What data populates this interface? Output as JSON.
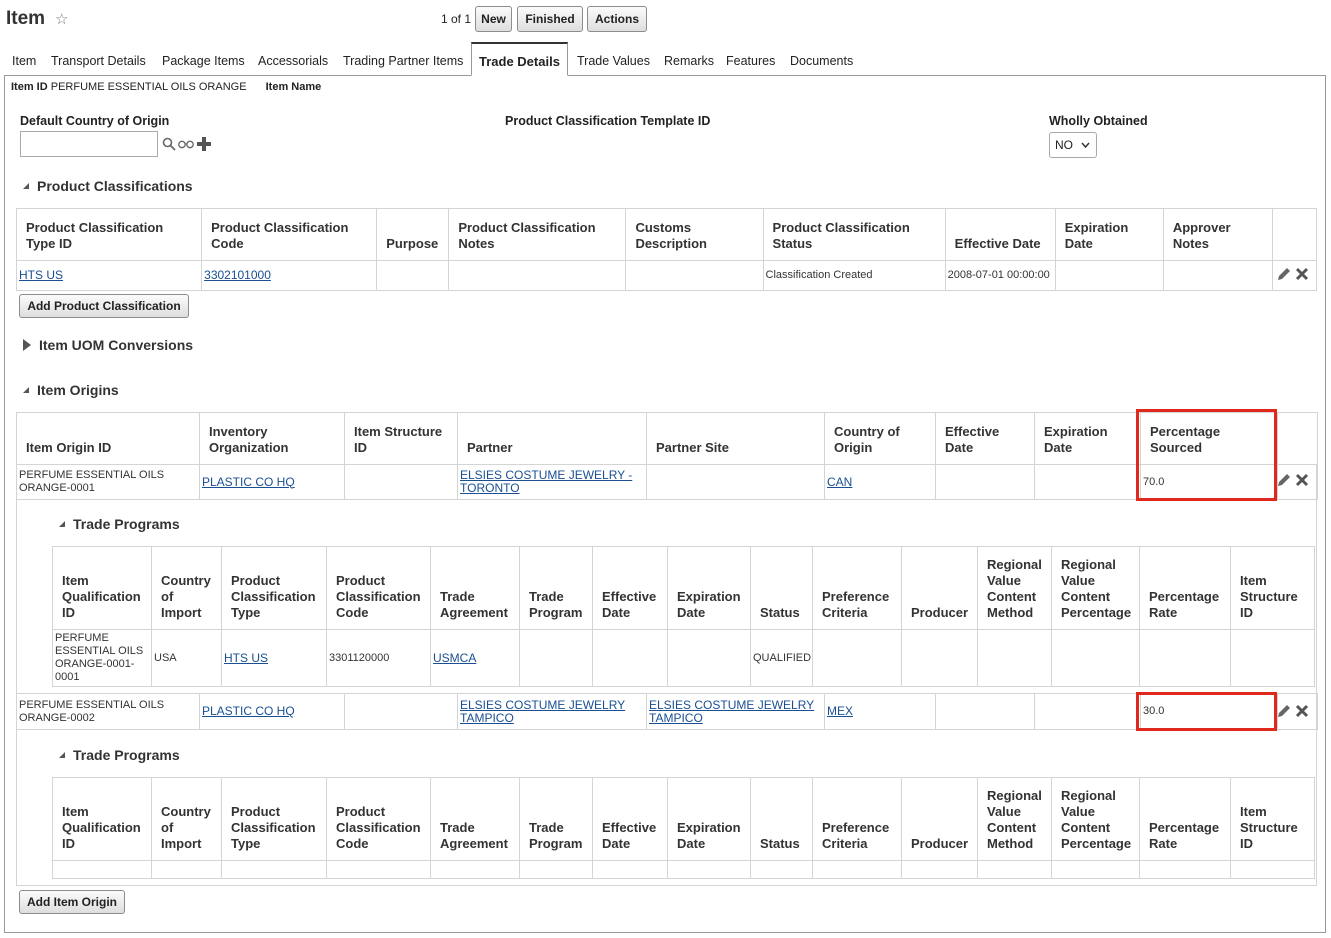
{
  "header": {
    "title": "Item",
    "pager": "1 of 1",
    "buttons": {
      "new": "New",
      "finished": "Finished",
      "actions": "Actions"
    }
  },
  "tabs": [
    "Item",
    "Transport Details",
    "Package Items",
    "Accessorials",
    "Trading Partner Items",
    "Trade Details",
    "Trade Values",
    "Remarks",
    "Features",
    "Documents"
  ],
  "active_tab": "Trade Details",
  "item_info": {
    "id_label": "Item ID",
    "id_value": "PERFUME ESSENTIAL OILS ORANGE",
    "name_label": "Item Name",
    "name_value": ""
  },
  "form": {
    "default_country_label": "Default Country of Origin",
    "default_country_value": "",
    "template_label": "Product Classification Template ID",
    "wholly_label": "Wholly Obtained",
    "wholly_value": "NO"
  },
  "product_classifications": {
    "title": "Product Classifications",
    "columns": [
      "Product Classification Type ID",
      "Product Classification Code",
      "Purpose",
      "Product Classification Notes",
      "Customs Description",
      "Product Classification Status",
      "Effective Date",
      "Expiration Date",
      "Approver Notes"
    ],
    "rows": [
      {
        "type_id": "HTS US",
        "code": "3302101000",
        "purpose": "",
        "notes": "",
        "customs": "",
        "status": "Classification Created",
        "effective": "2008-07-01 00:00:00",
        "expiration": "",
        "approver": ""
      }
    ],
    "add_button": "Add Product Classification"
  },
  "uom": {
    "title": "Item UOM Conversions"
  },
  "item_origins": {
    "title": "Item Origins",
    "columns": [
      "Item Origin ID",
      "Inventory Organization",
      "Item Structure ID",
      "Partner",
      "Partner Site",
      "Country of Origin",
      "Effective Date",
      "Expiration Date",
      "Percentage Sourced"
    ],
    "rows": [
      {
        "origin_id": "PERFUME ESSENTIAL OILS ORANGE-0001",
        "inv_org": "PLASTIC CO HQ",
        "structure": "",
        "partner": "ELSIES COSTUME JEWELRY - TORONTO",
        "partner_site": "",
        "country": "CAN",
        "effective": "",
        "expiration": "",
        "percentage": "70.0"
      },
      {
        "origin_id": "PERFUME ESSENTIAL OILS ORANGE-0002",
        "inv_org": "PLASTIC CO HQ",
        "structure": "",
        "partner": "ELSIES COSTUME JEWELRY TAMPICO",
        "partner_site": "ELSIES COSTUME JEWELRY TAMPICO",
        "country": "MEX",
        "effective": "",
        "expiration": "",
        "percentage": "30.0"
      }
    ],
    "add_button": "Add Item Origin"
  },
  "trade_programs": {
    "title": "Trade Programs",
    "columns": [
      "Item Qualification ID",
      "Country of Import",
      "Product Classification Type",
      "Product Classification Code",
      "Trade Agreement",
      "Trade Program",
      "Effective Date",
      "Expiration Date",
      "Status",
      "Preference Criteria",
      "Producer",
      "Regional Value Content Method",
      "Regional Value Content Percentage",
      "Percentage Rate",
      "Item Structure ID"
    ],
    "rows_1": [
      {
        "qual_id": "PERFUME ESSENTIAL OILS ORANGE-0001-0001",
        "country": "USA",
        "type": "HTS US",
        "code": "3301120000",
        "agreement": "USMCA",
        "program": "",
        "effective": "",
        "expiration": "",
        "status": "QUALIFIED",
        "criteria": "",
        "producer": "",
        "rvc_method": "",
        "rvc_pct": "",
        "rate": "",
        "structure": ""
      }
    ]
  },
  "colors": {
    "highlight": "#e0281c",
    "link": "#1a4f94"
  }
}
